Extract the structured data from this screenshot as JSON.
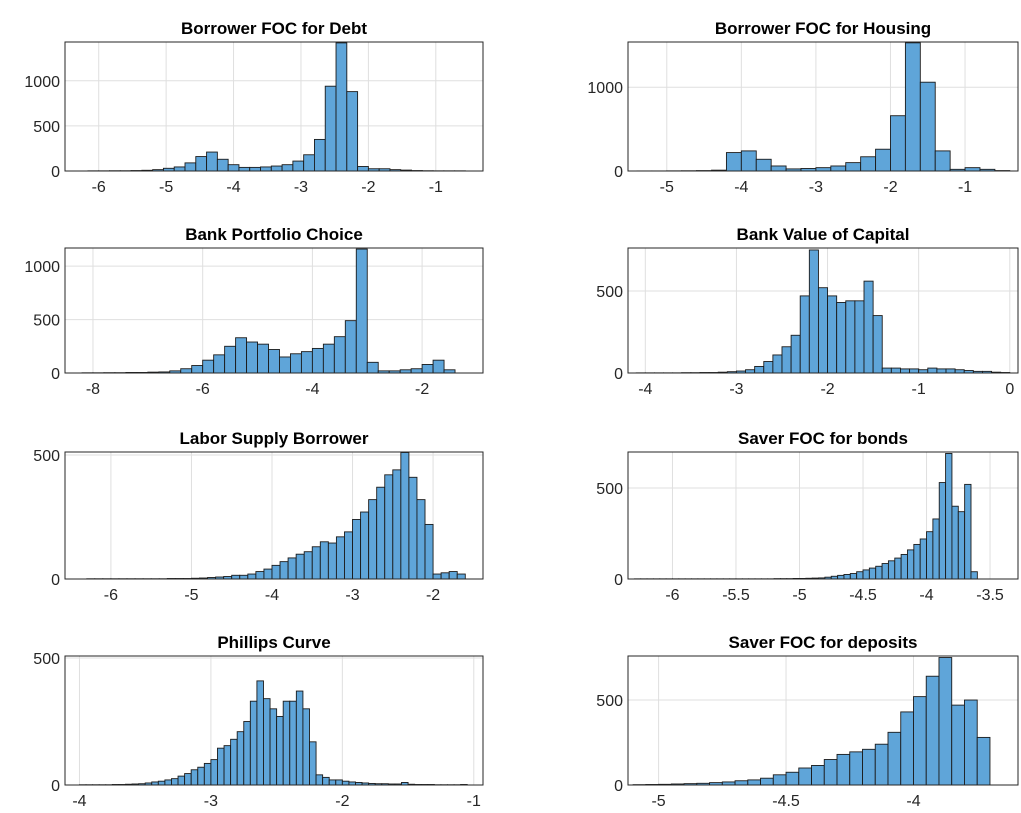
{
  "chart_data": [
    {
      "type": "histogram",
      "title": "Borrower FOC for Debt",
      "color": "#5fa5d9",
      "grid": true,
      "bins": [
        -6.16,
        -6.0,
        -5.84,
        -5.68,
        -5.52,
        -5.36,
        -5.2,
        -5.04,
        -4.88,
        -4.72,
        -4.56,
        -4.4,
        -4.24,
        -4.08,
        -3.92,
        -3.76,
        -3.6,
        -3.44,
        -3.28,
        -3.12,
        -2.96,
        -2.8,
        -2.64,
        -2.48,
        -2.32,
        -2.16,
        -2.0,
        -1.84,
        -1.68,
        -1.52,
        -1.36,
        -1.2,
        -1.04,
        -0.88,
        -0.72,
        -0.56
      ],
      "counts": [
        2,
        2,
        3,
        3,
        5,
        8,
        15,
        30,
        45,
        90,
        160,
        210,
        130,
        70,
        40,
        40,
        45,
        55,
        70,
        110,
        180,
        350,
        940,
        1420,
        880,
        50,
        25,
        25,
        15,
        10,
        5,
        3,
        2,
        2,
        2
      ],
      "xlim": [
        -6.5,
        -0.3
      ],
      "ylim": [
        0,
        1430
      ],
      "xticks": [
        -6,
        -5,
        -4,
        -3,
        -2,
        -1
      ],
      "yticks": [
        0,
        500,
        1000
      ]
    },
    {
      "type": "histogram",
      "title": "Borrower FOC for Housing",
      "color": "#5fa5d9",
      "grid": true,
      "bins": [
        -5.4,
        -5.2,
        -5.0,
        -4.8,
        -4.6,
        -4.4,
        -4.2,
        -4.0,
        -3.8,
        -3.6,
        -3.4,
        -3.2,
        -3.0,
        -2.8,
        -2.6,
        -2.4,
        -2.2,
        -2.0,
        -1.8,
        -1.6,
        -1.4,
        -1.2,
        -1.0,
        -0.8,
        -0.6,
        -0.4
      ],
      "counts": [
        1,
        1,
        2,
        3,
        5,
        10,
        220,
        240,
        140,
        60,
        25,
        30,
        40,
        60,
        100,
        170,
        260,
        660,
        1530,
        1060,
        240,
        20,
        40,
        20,
        5
      ],
      "xlim": [
        -5.52,
        -0.29
      ],
      "ylim": [
        0,
        1540
      ],
      "xticks": [
        -5,
        -4,
        -3,
        -2,
        -1
      ],
      "yticks": [
        0,
        1000
      ]
    },
    {
      "type": "histogram",
      "title": "Bank Portfolio Choice",
      "color": "#5fa5d9",
      "grid": true,
      "bins": [
        -8.2,
        -8.0,
        -7.8,
        -7.6,
        -7.4,
        -7.2,
        -7.0,
        -6.8,
        -6.6,
        -6.4,
        -6.2,
        -6.0,
        -5.8,
        -5.6,
        -5.4,
        -5.2,
        -5.0,
        -4.8,
        -4.6,
        -4.4,
        -4.2,
        -4.0,
        -3.8,
        -3.6,
        -3.4,
        -3.2,
        -3.0,
        -2.8,
        -2.6,
        -2.4,
        -2.2,
        -2.0,
        -1.8,
        -1.6,
        -1.4
      ],
      "counts": [
        2,
        2,
        3,
        3,
        5,
        5,
        8,
        10,
        20,
        40,
        70,
        120,
        170,
        250,
        330,
        290,
        270,
        220,
        150,
        180,
        200,
        230,
        270,
        340,
        490,
        1160,
        100,
        20,
        20,
        30,
        40,
        80,
        120,
        30
      ],
      "xlim": [
        -8.51,
        -0.89
      ],
      "ylim": [
        0,
        1170
      ],
      "xticks": [
        -8,
        -6,
        -4,
        -2
      ],
      "yticks": [
        0,
        500,
        1000
      ]
    },
    {
      "type": "histogram",
      "title": "Bank Value of Capital",
      "color": "#5fa5d9",
      "grid": true,
      "bins": [
        -4.1,
        -4.0,
        -3.9,
        -3.8,
        -3.7,
        -3.6,
        -3.5,
        -3.4,
        -3.3,
        -3.2,
        -3.1,
        -3.0,
        -2.9,
        -2.8,
        -2.7,
        -2.6,
        -2.5,
        -2.4,
        -2.3,
        -2.2,
        -2.1,
        -2.0,
        -1.9,
        -1.8,
        -1.7,
        -1.6,
        -1.5,
        -1.4,
        -1.3,
        -1.2,
        -1.1,
        -1.0,
        -0.9,
        -0.8,
        -0.7,
        -0.6,
        -0.5,
        -0.4,
        -0.3,
        -0.2,
        -0.1,
        0
      ],
      "counts": [
        1,
        1,
        1,
        1,
        1,
        2,
        2,
        3,
        3,
        5,
        8,
        12,
        20,
        40,
        70,
        110,
        160,
        230,
        470,
        750,
        520,
        470,
        430,
        440,
        440,
        560,
        350,
        30,
        30,
        25,
        25,
        20,
        30,
        25,
        25,
        20,
        15,
        10,
        10,
        5,
        3
      ],
      "xlim": [
        -4.19,
        0.09
      ],
      "ylim": [
        0,
        762
      ],
      "xticks": [
        -4,
        -3,
        -2,
        -1,
        0
      ],
      "yticks": [
        0,
        500
      ]
    },
    {
      "type": "histogram",
      "title": "Labor Supply Borrower",
      "color": "#5fa5d9",
      "grid": true,
      "bins": [
        -6.3,
        -6.2,
        -6.1,
        -6.0,
        -5.9,
        -5.8,
        -5.7,
        -5.6,
        -5.5,
        -5.4,
        -5.3,
        -5.2,
        -5.1,
        -5.0,
        -4.9,
        -4.8,
        -4.7,
        -4.6,
        -4.5,
        -4.4,
        -4.3,
        -4.2,
        -4.1,
        -4.0,
        -3.9,
        -3.8,
        -3.7,
        -3.6,
        -3.5,
        -3.4,
        -3.3,
        -3.2,
        -3.1,
        -3.0,
        -2.9,
        -2.8,
        -2.7,
        -2.6,
        -2.5,
        -2.4,
        -2.3,
        -2.2,
        -2.1,
        -2.0,
        -1.9,
        -1.8,
        -1.7,
        -1.6
      ],
      "counts": [
        1,
        1,
        1,
        1,
        1,
        1,
        1,
        1,
        1,
        1,
        2,
        2,
        2,
        3,
        4,
        6,
        8,
        10,
        15,
        15,
        20,
        30,
        40,
        55,
        70,
        85,
        100,
        110,
        130,
        150,
        145,
        170,
        190,
        240,
        270,
        320,
        370,
        420,
        440,
        510,
        410,
        320,
        220,
        20,
        25,
        30,
        20
      ],
      "xlim": [
        -6.57,
        -1.38
      ],
      "ylim": [
        0,
        512
      ],
      "xticks": [
        -6,
        -5,
        -4,
        -3,
        -2
      ],
      "yticks": [
        0,
        500
      ]
    },
    {
      "type": "histogram",
      "title": "Saver FOC for bonds",
      "color": "#5fa5d9",
      "grid": true,
      "bins": [
        -6.3,
        -6.25,
        -6.2,
        -6.15,
        -6.1,
        -6.05,
        -6.0,
        -5.95,
        -5.9,
        -5.85,
        -5.8,
        -5.75,
        -5.7,
        -5.65,
        -5.6,
        -5.55,
        -5.5,
        -5.45,
        -5.4,
        -5.35,
        -5.3,
        -5.25,
        -5.2,
        -5.15,
        -5.1,
        -5.05,
        -5.0,
        -4.95,
        -4.9,
        -4.85,
        -4.8,
        -4.75,
        -4.7,
        -4.65,
        -4.6,
        -4.55,
        -4.5,
        -4.45,
        -4.4,
        -4.35,
        -4.3,
        -4.25,
        -4.2,
        -4.15,
        -4.1,
        -4.05,
        -4.0,
        -3.95,
        -3.9,
        -3.85,
        -3.8,
        -3.75,
        -3.7,
        -3.65,
        -3.6
      ],
      "counts": [
        1,
        1,
        1,
        1,
        1,
        1,
        1,
        1,
        1,
        1,
        1,
        1,
        1,
        1,
        1,
        1,
        1,
        1,
        1,
        1,
        1,
        1,
        2,
        2,
        2,
        3,
        3,
        4,
        5,
        6,
        10,
        15,
        20,
        25,
        30,
        40,
        50,
        60,
        70,
        85,
        100,
        115,
        135,
        160,
        190,
        220,
        260,
        330,
        530,
        690,
        400,
        370,
        520,
        40
      ],
      "xlim": [
        -6.35,
        -3.28
      ],
      "ylim": [
        0,
        698
      ],
      "xticks": [
        -6,
        -5.5,
        -5,
        -4.5,
        -4,
        -3.5
      ],
      "yticks": [
        0,
        500
      ]
    },
    {
      "type": "histogram",
      "title": "Phillips Curve",
      "color": "#5fa5d9",
      "grid": true,
      "bins": [
        -4.0,
        -3.95,
        -3.9,
        -3.85,
        -3.8,
        -3.75,
        -3.7,
        -3.65,
        -3.6,
        -3.55,
        -3.5,
        -3.45,
        -3.4,
        -3.35,
        -3.3,
        -3.25,
        -3.2,
        -3.15,
        -3.1,
        -3.05,
        -3.0,
        -2.95,
        -2.9,
        -2.85,
        -2.8,
        -2.75,
        -2.7,
        -2.65,
        -2.6,
        -2.55,
        -2.5,
        -2.45,
        -2.4,
        -2.35,
        -2.3,
        -2.25,
        -2.2,
        -2.15,
        -2.1,
        -2.05,
        -2.0,
        -1.95,
        -1.9,
        -1.85,
        -1.8,
        -1.75,
        -1.7,
        -1.65,
        -1.6,
        -1.55,
        -1.5,
        -1.45,
        -1.4,
        -1.35,
        -1.3,
        -1.25,
        -1.2,
        -1.15,
        -1.1,
        -1.05
      ],
      "counts": [
        1,
        1,
        1,
        1,
        1,
        2,
        2,
        3,
        4,
        5,
        8,
        12,
        15,
        20,
        25,
        35,
        45,
        60,
        70,
        85,
        100,
        145,
        155,
        180,
        210,
        250,
        330,
        410,
        340,
        300,
        270,
        330,
        330,
        370,
        300,
        170,
        40,
        30,
        20,
        20,
        15,
        12,
        10,
        8,
        6,
        5,
        5,
        4,
        4,
        10,
        3,
        2,
        2,
        2,
        1,
        1,
        1,
        1,
        2
      ],
      "xlim": [
        -4.11,
        -0.93
      ],
      "ylim": [
        0,
        508
      ],
      "xticks": [
        -4,
        -3,
        -2,
        -1
      ],
      "yticks": [
        0,
        500
      ]
    },
    {
      "type": "histogram",
      "title": "Saver FOC for deposits",
      "color": "#5fa5d9",
      "grid": true,
      "bins": [
        -5.1,
        -5.05,
        -5.0,
        -4.95,
        -4.9,
        -4.85,
        -4.8,
        -4.75,
        -4.7,
        -4.65,
        -4.6,
        -4.55,
        -4.5,
        -4.45,
        -4.4,
        -4.35,
        -4.3,
        -4.25,
        -4.2,
        -4.15,
        -4.1,
        -4.05,
        -4.0,
        -3.95,
        -3.9,
        -3.85,
        -3.8,
        -3.75,
        -3.7
      ],
      "counts": [
        2,
        3,
        4,
        6,
        8,
        10,
        14,
        18,
        25,
        30,
        40,
        60,
        75,
        100,
        115,
        150,
        180,
        195,
        210,
        240,
        310,
        430,
        520,
        640,
        750,
        470,
        500,
        280
      ],
      "xlim": [
        -5.12,
        -3.59
      ],
      "ylim": [
        0,
        759
      ],
      "xticks": [
        -5,
        -4.5,
        -4
      ],
      "yticks": [
        0,
        500
      ]
    }
  ]
}
